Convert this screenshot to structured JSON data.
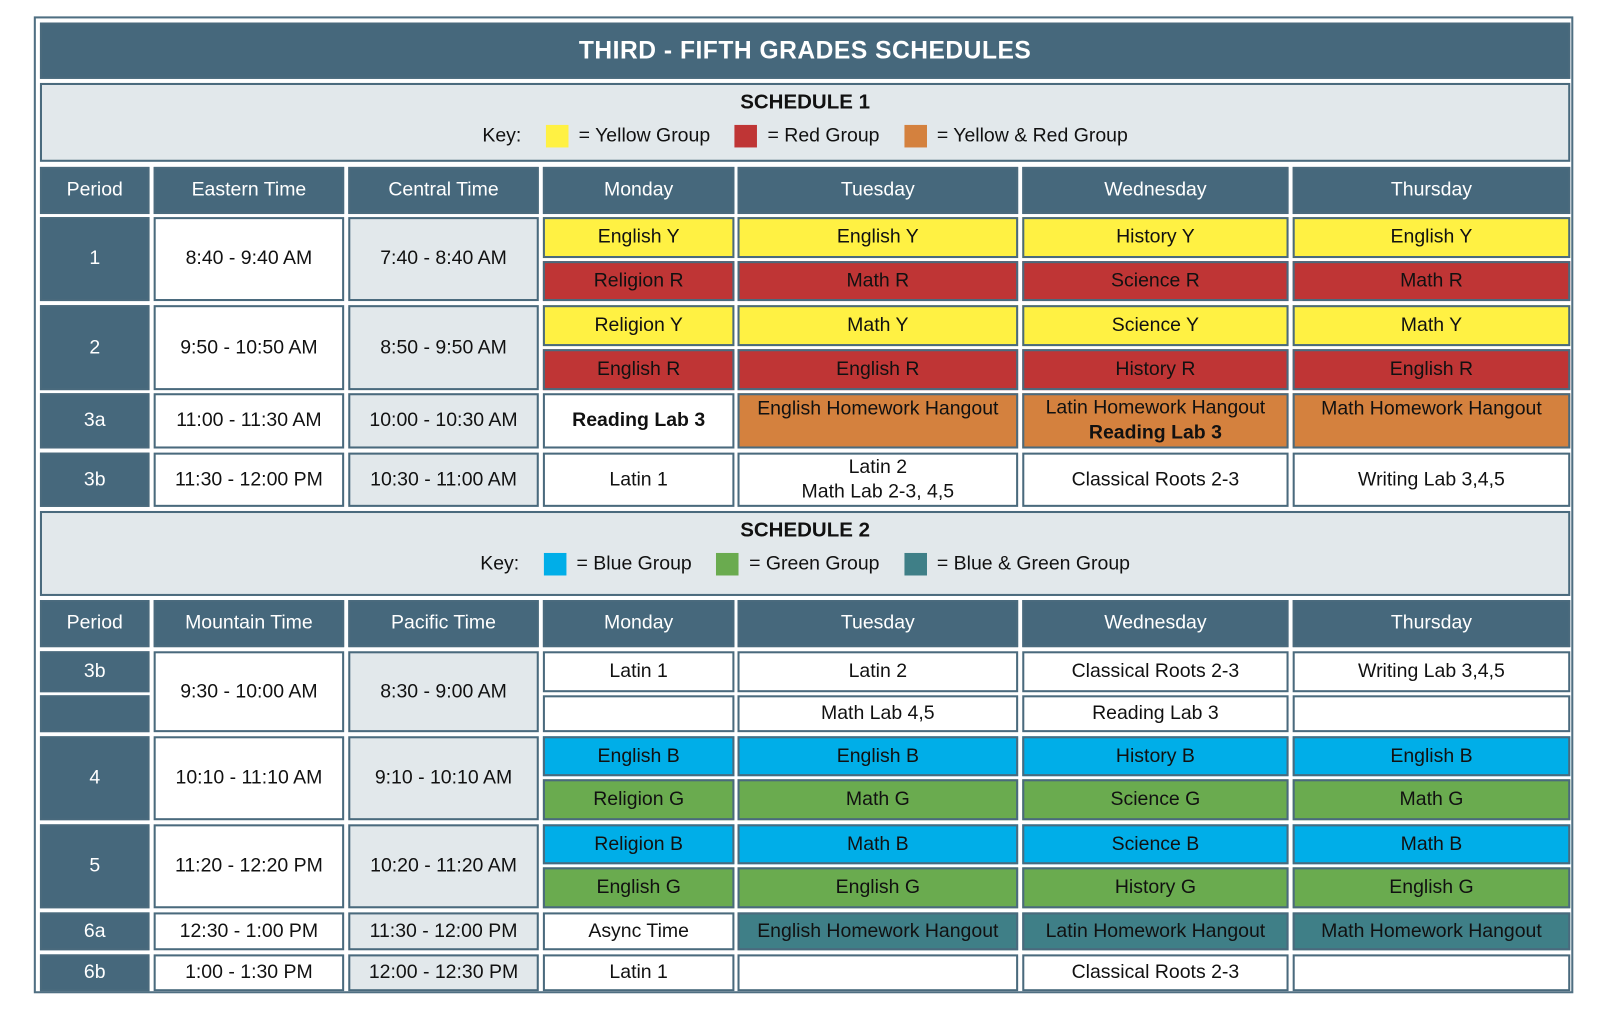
{
  "title": "THIRD - FIFTH GRADES SCHEDULES",
  "colors": {
    "header": "#46687c",
    "light": "#e2e8eb",
    "yellow": "#fff143",
    "red": "#bf3535",
    "orange": "#d4813e",
    "blue": "#00aee8",
    "green": "#6aab4f",
    "teal": "#3f7f87",
    "white": "#ffffff"
  },
  "schedules": [
    {
      "title": "SCHEDULE 1",
      "key_label": "Key:",
      "key": [
        {
          "color": "yellow",
          "label": "= Yellow Group"
        },
        {
          "color": "red",
          "label": "= Red Group"
        },
        {
          "color": "orange",
          "label": "= Yellow & Red Group"
        }
      ],
      "headers": [
        "Period",
        "Eastern Time",
        "Central Time",
        "Monday",
        "Tuesday",
        "Wednesday",
        "Thursday"
      ],
      "rows": [
        {
          "period": [
            "1"
          ],
          "time1": "8:40 - 9:40 AM",
          "time2": "7:40 - 8:40 AM",
          "days": [
            [
              {
                "lines": [
                  "English Y"
                ],
                "color": "yellow"
              },
              {
                "lines": [
                  "Religion R"
                ],
                "color": "red"
              }
            ],
            [
              {
                "lines": [
                  "English Y"
                ],
                "color": "yellow"
              },
              {
                "lines": [
                  "Math R"
                ],
                "color": "red"
              }
            ],
            [
              {
                "lines": [
                  "History Y"
                ],
                "color": "yellow"
              },
              {
                "lines": [
                  "Science R"
                ],
                "color": "red"
              }
            ],
            [
              {
                "lines": [
                  "English Y"
                ],
                "color": "yellow"
              },
              {
                "lines": [
                  "Math R"
                ],
                "color": "red"
              }
            ]
          ]
        },
        {
          "period": [
            "2"
          ],
          "time1": "9:50 - 10:50 AM",
          "time2": "8:50 - 9:50 AM",
          "days": [
            [
              {
                "lines": [
                  "Religion Y"
                ],
                "color": "yellow"
              },
              {
                "lines": [
                  "English R"
                ],
                "color": "red"
              }
            ],
            [
              {
                "lines": [
                  "Math Y"
                ],
                "color": "yellow"
              },
              {
                "lines": [
                  "English R"
                ],
                "color": "red"
              }
            ],
            [
              {
                "lines": [
                  "Science Y"
                ],
                "color": "yellow"
              },
              {
                "lines": [
                  "History R"
                ],
                "color": "red"
              }
            ],
            [
              {
                "lines": [
                  "Math Y"
                ],
                "color": "yellow"
              },
              {
                "lines": [
                  "English R"
                ],
                "color": "red"
              }
            ]
          ]
        },
        {
          "period": [
            "3a"
          ],
          "time1": "11:00 - 11:30 AM",
          "time2": "10:00 - 10:30 AM",
          "days": [
            [
              {
                "lines": [
                  "Reading Lab 3"
                ],
                "color": "white",
                "bold": [
                  true
                ]
              }
            ],
            [
              {
                "lines": [
                  "English Homework Hangout"
                ],
                "color": "orange",
                "top": true
              }
            ],
            [
              {
                "lines": [
                  "Latin Homework Hangout",
                  "Reading Lab 3"
                ],
                "color": "orange",
                "bold": [
                  false,
                  true
                ]
              }
            ],
            [
              {
                "lines": [
                  "Math Homework Hangout"
                ],
                "color": "orange",
                "top": true
              }
            ]
          ]
        },
        {
          "period": [
            "3b"
          ],
          "time1": "11:30 - 12:00 PM",
          "time2": "10:30 - 11:00 AM",
          "days": [
            [
              {
                "lines": [
                  "Latin 1"
                ],
                "color": "white"
              }
            ],
            [
              {
                "lines": [
                  "Latin 2",
                  "Math Lab 2-3, 4,5"
                ],
                "color": "white"
              }
            ],
            [
              {
                "lines": [
                  "Classical Roots 2-3"
                ],
                "color": "white"
              }
            ],
            [
              {
                "lines": [
                  "Writing Lab 3,4,5"
                ],
                "color": "white"
              }
            ]
          ]
        }
      ]
    },
    {
      "title": "SCHEDULE 2",
      "key_label": "Key:",
      "key": [
        {
          "color": "blue",
          "label": "= Blue Group"
        },
        {
          "color": "green",
          "label": "= Green Group"
        },
        {
          "color": "teal",
          "label": "= Blue & Green Group"
        }
      ],
      "headers": [
        "Period",
        "Mountain Time",
        "Pacific Time",
        "Monday",
        "Tuesday",
        "Wednesday",
        "Thursday"
      ],
      "rows": [
        {
          "period": [
            "3b",
            ""
          ],
          "time1": "9:30 - 10:00 AM",
          "time2": "8:30 - 9:00 AM",
          "days": [
            [
              {
                "lines": [
                  "Latin 1"
                ],
                "color": "white"
              },
              {
                "lines": [
                  ""
                ],
                "color": "white"
              }
            ],
            [
              {
                "lines": [
                  "Latin 2"
                ],
                "color": "white"
              },
              {
                "lines": [
                  "Math Lab 4,5"
                ],
                "color": "white"
              }
            ],
            [
              {
                "lines": [
                  "Classical Roots 2-3"
                ],
                "color": "white"
              },
              {
                "lines": [
                  "Reading Lab 3"
                ],
                "color": "white"
              }
            ],
            [
              {
                "lines": [
                  "Writing Lab 3,4,5"
                ],
                "color": "white"
              },
              {
                "lines": [
                  ""
                ],
                "color": "white"
              }
            ]
          ]
        },
        {
          "period": [
            "4"
          ],
          "time1": "10:10 - 11:10 AM",
          "time2": "9:10 - 10:10 AM",
          "days": [
            [
              {
                "lines": [
                  "English B"
                ],
                "color": "blue"
              },
              {
                "lines": [
                  "Religion G"
                ],
                "color": "green"
              }
            ],
            [
              {
                "lines": [
                  "English B"
                ],
                "color": "blue"
              },
              {
                "lines": [
                  "Math G"
                ],
                "color": "green"
              }
            ],
            [
              {
                "lines": [
                  "History B"
                ],
                "color": "blue"
              },
              {
                "lines": [
                  "Science G"
                ],
                "color": "green"
              }
            ],
            [
              {
                "lines": [
                  "English B"
                ],
                "color": "blue"
              },
              {
                "lines": [
                  "Math G"
                ],
                "color": "green"
              }
            ]
          ]
        },
        {
          "period": [
            "5"
          ],
          "time1": "11:20 - 12:20 PM",
          "time2": "10:20 - 11:20 AM",
          "days": [
            [
              {
                "lines": [
                  "Religion B"
                ],
                "color": "blue"
              },
              {
                "lines": [
                  "English G"
                ],
                "color": "green"
              }
            ],
            [
              {
                "lines": [
                  "Math B"
                ],
                "color": "blue"
              },
              {
                "lines": [
                  "English G"
                ],
                "color": "green"
              }
            ],
            [
              {
                "lines": [
                  "Science B"
                ],
                "color": "blue"
              },
              {
                "lines": [
                  "History G"
                ],
                "color": "green"
              }
            ],
            [
              {
                "lines": [
                  "Math B"
                ],
                "color": "blue"
              },
              {
                "lines": [
                  "English G"
                ],
                "color": "green"
              }
            ]
          ]
        },
        {
          "period": [
            "6a"
          ],
          "time1": "12:30 - 1:00 PM",
          "time2": "11:30 - 12:00 PM",
          "days": [
            [
              {
                "lines": [
                  "Async Time"
                ],
                "color": "white"
              }
            ],
            [
              {
                "lines": [
                  "English Homework Hangout"
                ],
                "color": "teal"
              }
            ],
            [
              {
                "lines": [
                  "Latin Homework Hangout"
                ],
                "color": "teal"
              }
            ],
            [
              {
                "lines": [
                  "Math Homework Hangout"
                ],
                "color": "teal"
              }
            ]
          ]
        },
        {
          "period": [
            "6b"
          ],
          "time1": "1:00 - 1:30 PM",
          "time2": "12:00 - 12:30 PM",
          "days": [
            [
              {
                "lines": [
                  "Latin 1"
                ],
                "color": "white"
              }
            ],
            [
              {
                "lines": [
                  ""
                ],
                "color": "white"
              }
            ],
            [
              {
                "lines": [
                  "Classical Roots 2-3"
                ],
                "color": "white"
              }
            ],
            [
              {
                "lines": [
                  ""
                ],
                "color": "white"
              }
            ]
          ]
        }
      ]
    }
  ]
}
